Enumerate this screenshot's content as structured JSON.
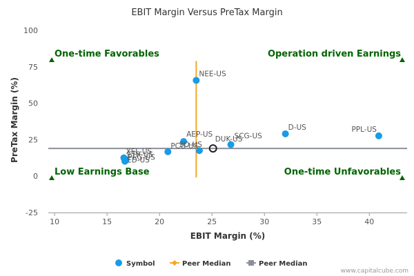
{
  "chart_data": {
    "type": "scatter",
    "title": "EBIT Margin Versus PreTax Margin",
    "xlabel": "EBIT Margin (%)",
    "ylabel": "PreTax Margin (%)",
    "xlim": [
      9.4,
      43.6
    ],
    "ylim": [
      -25,
      100
    ],
    "xticks": [
      10,
      15,
      20,
      25,
      30,
      35,
      40
    ],
    "yticks": [
      -25,
      0,
      25,
      50,
      75,
      100
    ],
    "grid": false,
    "legend_position": "bottom",
    "points": [
      {
        "label": "NEE-US",
        "x": 23.5,
        "y": 65.7
      },
      {
        "label": "AEP-US",
        "x": 22.3,
        "y": 23.7
      },
      {
        "label": "PCG-US",
        "x": 20.8,
        "y": 16.7
      },
      {
        "label": "SO-US",
        "x": 23.8,
        "y": 17.5
      },
      {
        "label": "DUK-US",
        "x": 25.1,
        "y": 19.0
      },
      {
        "label": "SCG-US",
        "x": 26.8,
        "y": 21.6
      },
      {
        "label": "D-US",
        "x": 32.0,
        "y": 29.0
      },
      {
        "label": "PPL-US",
        "x": 40.9,
        "y": 27.6
      },
      {
        "label": "XEL-US",
        "x": 16.6,
        "y": 12.5
      },
      {
        "label": "ETR-US",
        "x": 16.7,
        "y": 11.6
      },
      {
        "label": "PEG-US",
        "x": 16.8,
        "y": 10.8
      },
      {
        "label": "ED-US",
        "x": 16.7,
        "y": 10.2
      }
    ],
    "highlight_label": "DUK-US",
    "peer_median_x": 23.5,
    "peer_median_x_range": [
      -1,
      79
    ],
    "peer_median_y": 19.0,
    "quadrants": [
      {
        "label": "One-time Favorables",
        "position": "top-left"
      },
      {
        "label": "Operation driven Earnings",
        "position": "top-right"
      },
      {
        "label": "Low Earnings Base",
        "position": "bottom-left"
      },
      {
        "label": "One-time Unfavorables",
        "position": "bottom-right"
      }
    ],
    "legend": [
      {
        "name": "Symbol",
        "color": "#1a9be6",
        "marker": "circle"
      },
      {
        "name": "Peer Median",
        "color": "#f5a623",
        "marker": "diamond-line"
      },
      {
        "name": "Peer Median",
        "color": "#8a8f99",
        "marker": "square-line"
      }
    ],
    "colors": {
      "point": "#1a9be6",
      "median_v": "#f5a623",
      "median_h": "#8a8f99",
      "quadrant": "#006400",
      "axis": "#999999"
    }
  },
  "credit": "www.capitalcube.com"
}
